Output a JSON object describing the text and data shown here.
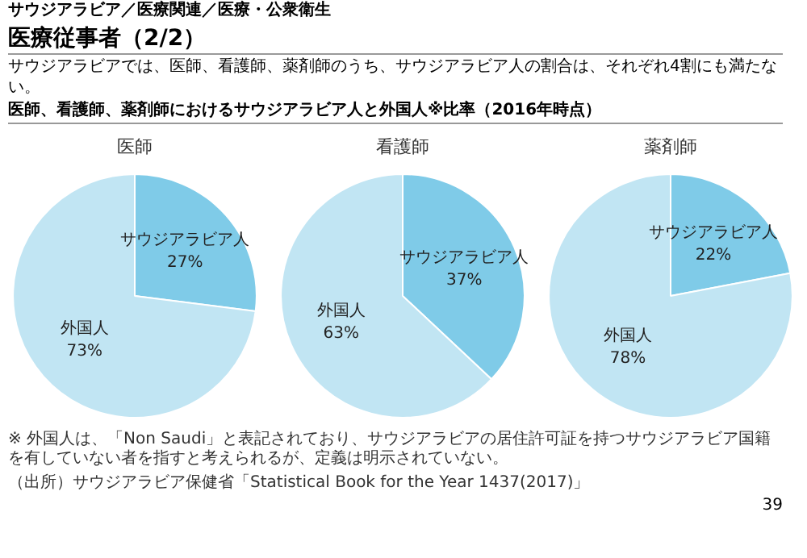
{
  "chart_data": [
    {
      "type": "other",
      "title": "医療従事者（2/2）",
      "subtitle": "サウジアラビア／医療関連／医療・公衆衛生",
      "annotations": [
        "サウジアラビアでは、医師、看護師、薬剤師のうち、サウジアラビア人の割合は、それぞれ4割にも満たない。",
        "医師、看護師、薬剤師におけるサウジアラビア人と外国人※比率（2016年時点）",
        "※ 外国人は、「Non Saudi」と表記されており、サウジアラビアの居住許可証を持つサウジアラビア国籍を有していない者を指すと考えられるが、定義は明示されていない。",
        "（出所）サウジアラビア保健省「Statistical Book for the Year 1437(2017)」",
        "39"
      ]
    },
    {
      "type": "pie",
      "title": "医師",
      "categories": [
        "サウジアラビア人",
        "外国人"
      ],
      "values": [
        27,
        73
      ],
      "value_labels": [
        "27%",
        "73%"
      ],
      "colors": [
        "#7fcbe8",
        "#c1e5f3"
      ]
    },
    {
      "type": "pie",
      "title": "看護師",
      "categories": [
        "サウジアラビア人",
        "外国人"
      ],
      "values": [
        37,
        63
      ],
      "value_labels": [
        "37%",
        "63%"
      ],
      "colors": [
        "#7fcbe8",
        "#c1e5f3"
      ]
    },
    {
      "type": "pie",
      "title": "薬剤師",
      "categories": [
        "サウジアラビア人",
        "外国人"
      ],
      "values": [
        22,
        78
      ],
      "value_labels": [
        "22%",
        "78%"
      ],
      "colors": [
        "#7fcbe8",
        "#c1e5f3"
      ]
    }
  ]
}
